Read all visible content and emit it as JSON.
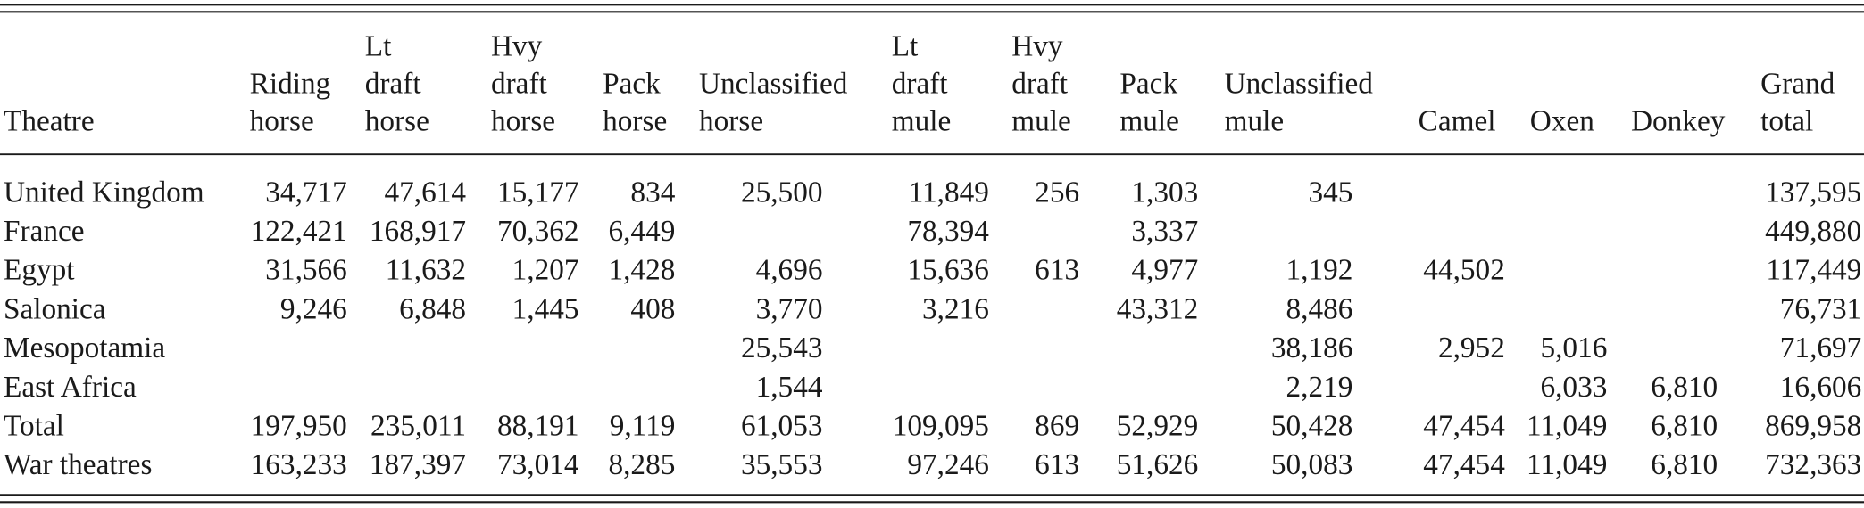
{
  "table": {
    "headers": [
      [
        "Theatre"
      ],
      [
        "Riding",
        "horse"
      ],
      [
        "Lt",
        "draft",
        "horse"
      ],
      [
        "Hvy",
        "draft",
        "horse"
      ],
      [
        "Pack",
        "horse"
      ],
      [
        "Unclassified",
        "horse"
      ],
      [
        "Lt",
        "draft",
        "mule"
      ],
      [
        "Hvy",
        "draft",
        "mule"
      ],
      [
        "Pack",
        "mule"
      ],
      [
        "Unclassified",
        "mule"
      ],
      [
        "Camel"
      ],
      [
        "Oxen"
      ],
      [
        "Donkey"
      ],
      [
        "Grand",
        "total"
      ]
    ],
    "rows": [
      [
        "United Kingdom",
        "34,717",
        "47,614",
        "15,177",
        "834",
        "25,500",
        "11,849",
        "256",
        "1,303",
        "345",
        null,
        null,
        null,
        "137,595"
      ],
      [
        "France",
        "122,421",
        "168,917",
        "70,362",
        "6,449",
        null,
        "78,394",
        null,
        "3,337",
        null,
        null,
        null,
        null,
        "449,880"
      ],
      [
        "Egypt",
        "31,566",
        "11,632",
        "1,207",
        "1,428",
        "4,696",
        "15,636",
        "613",
        "4,977",
        "1,192",
        "44,502",
        null,
        null,
        "117,449"
      ],
      [
        "Salonica",
        "9,246",
        "6,848",
        "1,445",
        "408",
        "3,770",
        "3,216",
        null,
        "43,312",
        "8,486",
        null,
        null,
        null,
        "76,731"
      ],
      [
        "Mesopotamia",
        null,
        null,
        null,
        null,
        "25,543",
        null,
        null,
        null,
        "38,186",
        "2,952",
        "5,016",
        null,
        "71,697"
      ],
      [
        "East Africa",
        null,
        null,
        null,
        null,
        "1,544",
        null,
        null,
        null,
        "2,219",
        null,
        "6,033",
        "6,810",
        "16,606"
      ],
      [
        "Total",
        "197,950",
        "235,011",
        "88,191",
        "9,119",
        "61,053",
        "109,095",
        "869",
        "52,929",
        "50,428",
        "47,454",
        "11,049",
        "6,810",
        "869,958"
      ],
      [
        "War theatres",
        "163,233",
        "187,397",
        "73,014",
        "8,285",
        "35,553",
        "97,246",
        "613",
        "51,626",
        "50,083",
        "47,454",
        "11,049",
        "6,810",
        "732,363"
      ]
    ]
  }
}
